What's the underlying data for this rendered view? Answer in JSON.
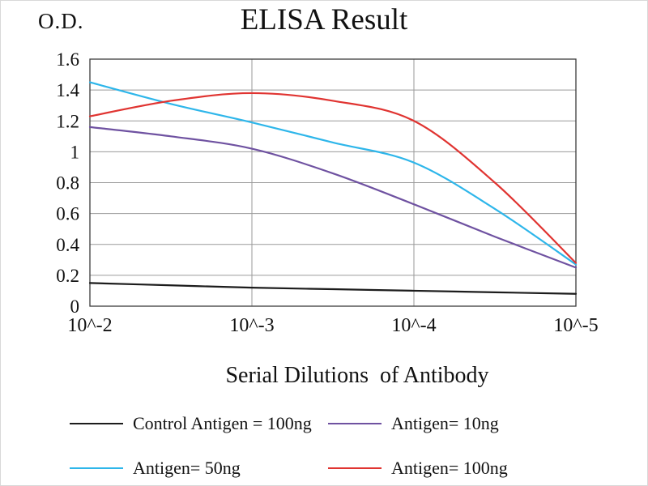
{
  "chart_data": {
    "type": "line",
    "title": "ELISA Result",
    "ylabel": "O.D.",
    "xlabel": "Serial Dilutions  of Antibody",
    "x_scale": "log-exponent",
    "x": [
      -2,
      -2.5,
      -3,
      -3.5,
      -4,
      -4.5,
      -5
    ],
    "x_ticks": [
      -2,
      -3,
      -4,
      -5
    ],
    "x_tick_labels": [
      "10^-2",
      "10^-3",
      "10^-4",
      "10^-5"
    ],
    "y_ticks": [
      0,
      0.2,
      0.4,
      0.6,
      0.8,
      1,
      1.2,
      1.4,
      1.6
    ],
    "y_tick_labels": [
      "0",
      "0.2",
      "0.4",
      "0.6",
      "0.8",
      "1",
      "1.2",
      "1.4",
      "1.6"
    ],
    "ylim": [
      0,
      1.6
    ],
    "grid": true,
    "legend_position": "bottom",
    "grid_color": "#9a9a9a",
    "frame_color": "#3c3c3c",
    "series": [
      {
        "name": "Control Antigen = 100ng",
        "color": "#1c1c1c",
        "values": [
          0.15,
          0.135,
          0.12,
          0.11,
          0.1,
          0.09,
          0.08
        ]
      },
      {
        "name": "Antigen= 10ng",
        "color": "#6f52a1",
        "values": [
          1.16,
          1.1,
          1.02,
          0.86,
          0.66,
          0.45,
          0.25
        ]
      },
      {
        "name": "Antigen= 50ng",
        "color": "#2eb6ea",
        "values": [
          1.45,
          1.31,
          1.19,
          1.06,
          0.93,
          0.63,
          0.27
        ]
      },
      {
        "name": "Antigen= 100ng",
        "color": "#e03431",
        "values": [
          1.23,
          1.33,
          1.38,
          1.33,
          1.2,
          0.8,
          0.28
        ]
      }
    ]
  }
}
